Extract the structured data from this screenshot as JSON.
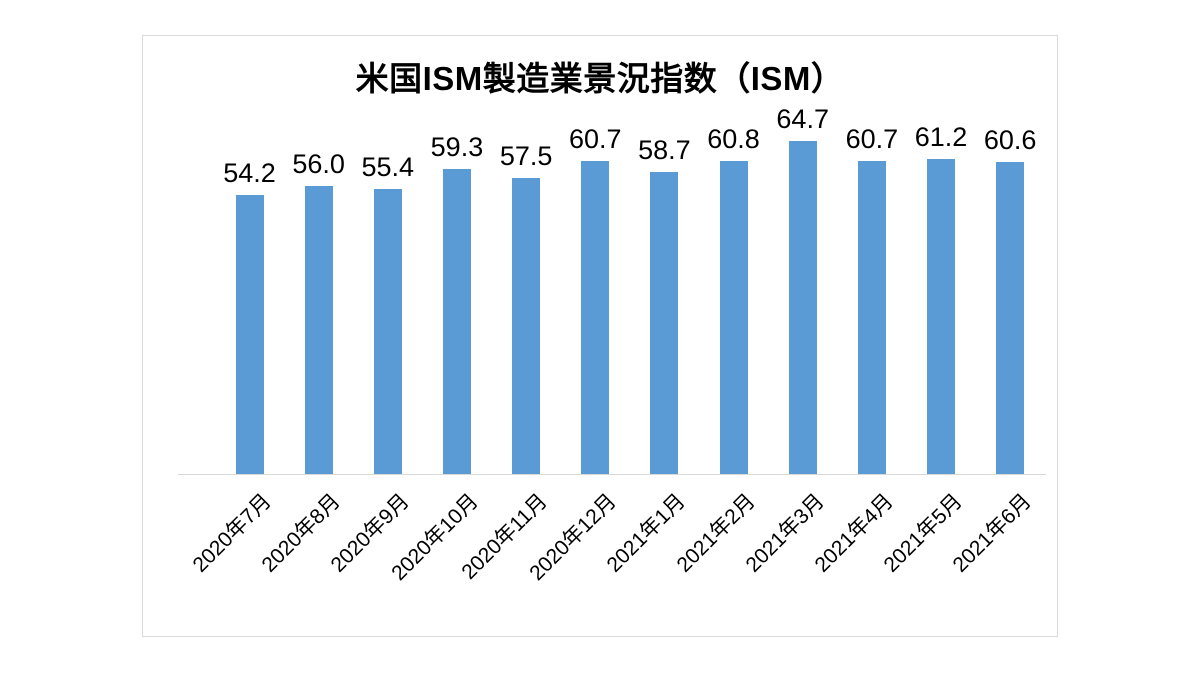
{
  "chart_data": {
    "type": "bar",
    "title": "米国ISM製造業景況指数（ISM）",
    "categories": [
      "2020年7月",
      "2020年8月",
      "2020年9月",
      "2020年10月",
      "2020年11月",
      "2020年12月",
      "2021年1月",
      "2021年2月",
      "2021年3月",
      "2021年4月",
      "2021年5月",
      "2021年6月"
    ],
    "values": [
      54.2,
      56.0,
      55.4,
      59.3,
      57.5,
      60.7,
      58.7,
      60.8,
      64.7,
      60.7,
      61.2,
      60.6
    ],
    "data_labels": [
      "54.2",
      "56.0",
      "55.4",
      "59.3",
      "57.5",
      "60.7",
      "58.7",
      "60.8",
      "64.7",
      "60.7",
      "61.2",
      "60.6"
    ],
    "xlabel": "",
    "ylabel": "",
    "ylim": [
      0,
      85
    ],
    "grid": false,
    "legend": "none",
    "bar_color": "#5B9BD5",
    "axis_line_color": "#D9D9D9",
    "frame_border_color": "#D9D9D9",
    "title_color": "#000000",
    "label_color": "#000000",
    "background_color": "#FFFFFF"
  }
}
